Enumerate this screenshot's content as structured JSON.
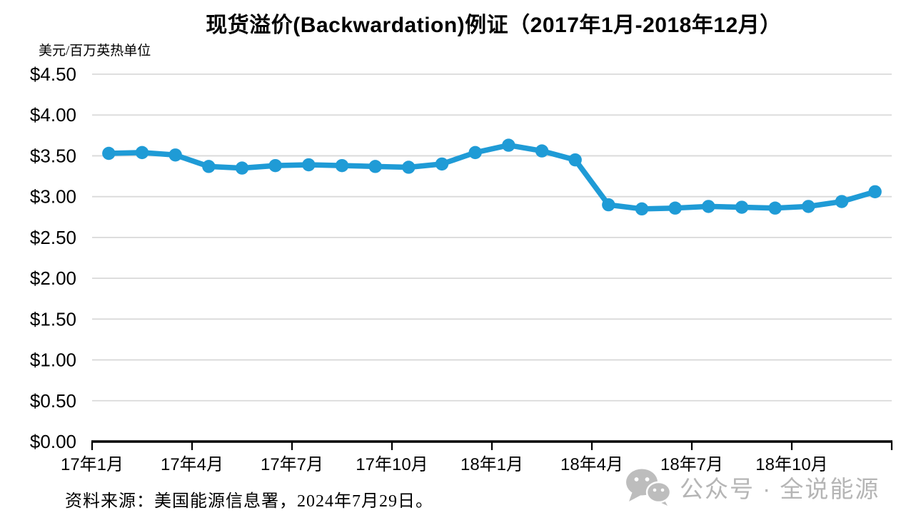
{
  "chart_data": {
    "type": "line",
    "title": "现货溢价(Backwardation)例证（2017年1月-2018年12月）",
    "unit_label": "美元/百万英热单位",
    "x": [
      "2017-01",
      "2017-02",
      "2017-03",
      "2017-04",
      "2017-05",
      "2017-06",
      "2017-07",
      "2017-08",
      "2017-09",
      "2017-10",
      "2017-11",
      "2017-12",
      "2018-01",
      "2018-02",
      "2018-03",
      "2018-04",
      "2018-05",
      "2018-06",
      "2018-07",
      "2018-08",
      "2018-09",
      "2018-10",
      "2018-11",
      "2018-12"
    ],
    "values": [
      3.53,
      3.54,
      3.51,
      3.37,
      3.35,
      3.38,
      3.39,
      3.38,
      3.37,
      3.36,
      3.4,
      3.54,
      3.63,
      3.56,
      3.45,
      2.9,
      2.85,
      2.86,
      2.88,
      2.87,
      2.86,
      2.88,
      2.94,
      3.06
    ],
    "x_tick_labels": [
      "17年1月",
      "17年4月",
      "17年7月",
      "17年10月",
      "18年1月",
      "18年4月",
      "18年7月",
      "18年10月"
    ],
    "y_tick_labels": [
      "$0.00",
      "$0.50",
      "$1.00",
      "$1.50",
      "$2.00",
      "$2.50",
      "$3.00",
      "$3.50",
      "$4.00",
      "$4.50"
    ],
    "ylim": [
      0,
      4.5
    ],
    "y_tick_step": 0.5,
    "grid": true,
    "legend": false,
    "line_color": "#1f9bd6",
    "grid_color": "#d9d9d9",
    "axis_color": "#000000"
  },
  "footer": {
    "source": "资料来源：美国能源信息署，2024年7月29日。",
    "watermark_text": "公众号 · 全说能源",
    "watermark_color": "#b5b5b5",
    "watermark_icon": "wechat-icon"
  }
}
